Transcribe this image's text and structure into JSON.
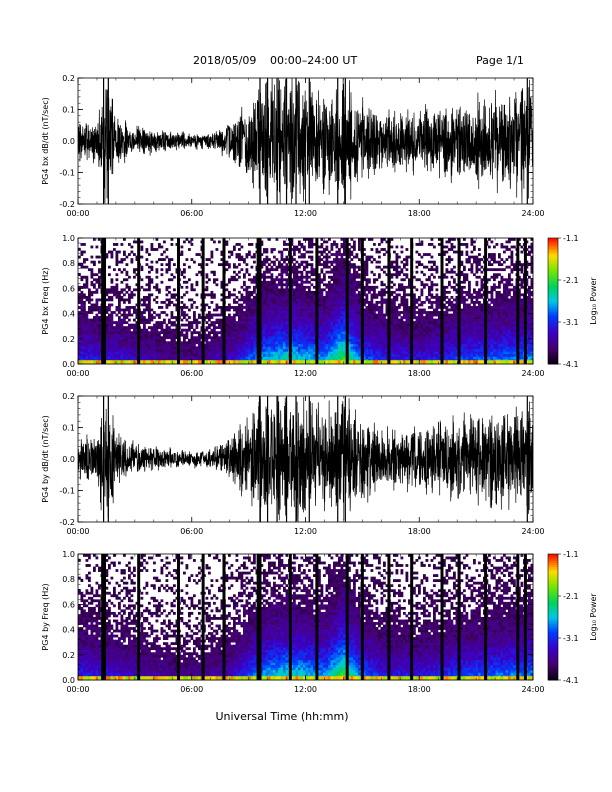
{
  "header": {
    "date_label": "2018/05/09",
    "time_range_label": "00:00–24:00 UT",
    "page_label": "Page 1/1"
  },
  "x_axis_label": "Universal Time (hh:mm)",
  "colorbar_label": "Log₁₀ Power",
  "chart_data": [
    {
      "type": "line",
      "name_label": "PG4 bx dB/dt (nT/sec)",
      "ylabel": "PG4 bx dB/dt (nT/sec)",
      "xlim": [
        "00:00",
        "24:00"
      ],
      "ylim": [
        -0.2,
        0.2
      ],
      "x_ticks": [
        "00:00",
        "06:00",
        "12:00",
        "18:00",
        "24:00"
      ],
      "y_ticks": [
        "-0.2",
        "-0.1",
        "0.0",
        "0.1",
        "0.2"
      ],
      "envelope_hours": [
        0,
        1,
        1.4,
        1.6,
        2,
        3,
        4,
        5,
        6,
        7,
        8,
        9,
        9.5,
        10,
        11,
        12,
        13,
        14,
        15,
        16,
        17,
        18,
        19,
        20,
        21,
        22,
        23,
        24
      ],
      "envelope_amplitude": [
        0.06,
        0.07,
        0.2,
        0.2,
        0.08,
        0.05,
        0.04,
        0.03,
        0.025,
        0.03,
        0.06,
        0.12,
        0.2,
        0.2,
        0.2,
        0.2,
        0.15,
        0.2,
        0.13,
        0.1,
        0.09,
        0.1,
        0.12,
        0.12,
        0.14,
        0.15,
        0.16,
        0.2
      ]
    },
    {
      "type": "heatmap",
      "ylabel": "PG4 bx Freq (Hz)",
      "xlim": [
        "00:00",
        "24:00"
      ],
      "ylim": [
        0.0,
        1.0
      ],
      "x_ticks": [
        "00:00",
        "06:00",
        "12:00",
        "18:00",
        "24:00"
      ],
      "y_ticks": [
        "0.0",
        "0.2",
        "0.4",
        "0.6",
        "0.8",
        "1.0"
      ],
      "colorbar": {
        "label": "Log₁₀ Power",
        "min": -4.1,
        "max": -1.1,
        "ticks": [
          "-1.1",
          "-2.1",
          "-3.1",
          "-4.1"
        ]
      },
      "gap_hours": [
        1.3,
        1.4,
        3.2,
        5.3,
        6.6,
        7.7,
        9.5,
        9.6,
        11.2,
        12.6,
        14.2,
        15.0,
        16.4,
        17.6,
        19.2,
        20.1,
        21.5,
        23.2,
        23.6
      ]
    },
    {
      "type": "line",
      "ylabel": "PG4 by dB/dt (nT/sec)",
      "xlim": [
        "00:00",
        "24:00"
      ],
      "ylim": [
        -0.2,
        0.2
      ],
      "x_ticks": [
        "00:00",
        "06:00",
        "12:00",
        "18:00",
        "24:00"
      ],
      "y_ticks": [
        "-0.2",
        "-0.1",
        "0.0",
        "0.1",
        "0.2"
      ],
      "envelope_hours": [
        0,
        1,
        1.4,
        1.6,
        2,
        3,
        4,
        5,
        6,
        7,
        8,
        9,
        9.5,
        10,
        11,
        12,
        13,
        14,
        15,
        16,
        17,
        18,
        19,
        20,
        21,
        22,
        23,
        24
      ],
      "envelope_amplitude": [
        0.07,
        0.08,
        0.2,
        0.2,
        0.09,
        0.05,
        0.04,
        0.03,
        0.025,
        0.03,
        0.07,
        0.13,
        0.2,
        0.2,
        0.2,
        0.2,
        0.16,
        0.2,
        0.14,
        0.1,
        0.1,
        0.11,
        0.12,
        0.13,
        0.15,
        0.16,
        0.17,
        0.2
      ]
    },
    {
      "type": "heatmap",
      "ylabel": "PG4 by Freq (Hz)",
      "xlim": [
        "00:00",
        "24:00"
      ],
      "ylim": [
        0.0,
        1.0
      ],
      "x_ticks": [
        "00:00",
        "06:00",
        "12:00",
        "18:00",
        "24:00"
      ],
      "y_ticks": [
        "0.0",
        "0.2",
        "0.4",
        "0.6",
        "0.8",
        "1.0"
      ],
      "colorbar": {
        "label": "Log₁₀ Power",
        "min": -4.1,
        "max": -1.1,
        "ticks": [
          "-1.1",
          "-2.1",
          "-3.1",
          "-4.1"
        ]
      },
      "gap_hours": [
        1.3,
        1.4,
        3.2,
        5.3,
        6.6,
        7.7,
        9.5,
        9.6,
        11.2,
        12.6,
        14.2,
        15.0,
        16.4,
        17.6,
        19.2,
        20.1,
        21.5,
        23.2,
        23.6
      ]
    }
  ]
}
